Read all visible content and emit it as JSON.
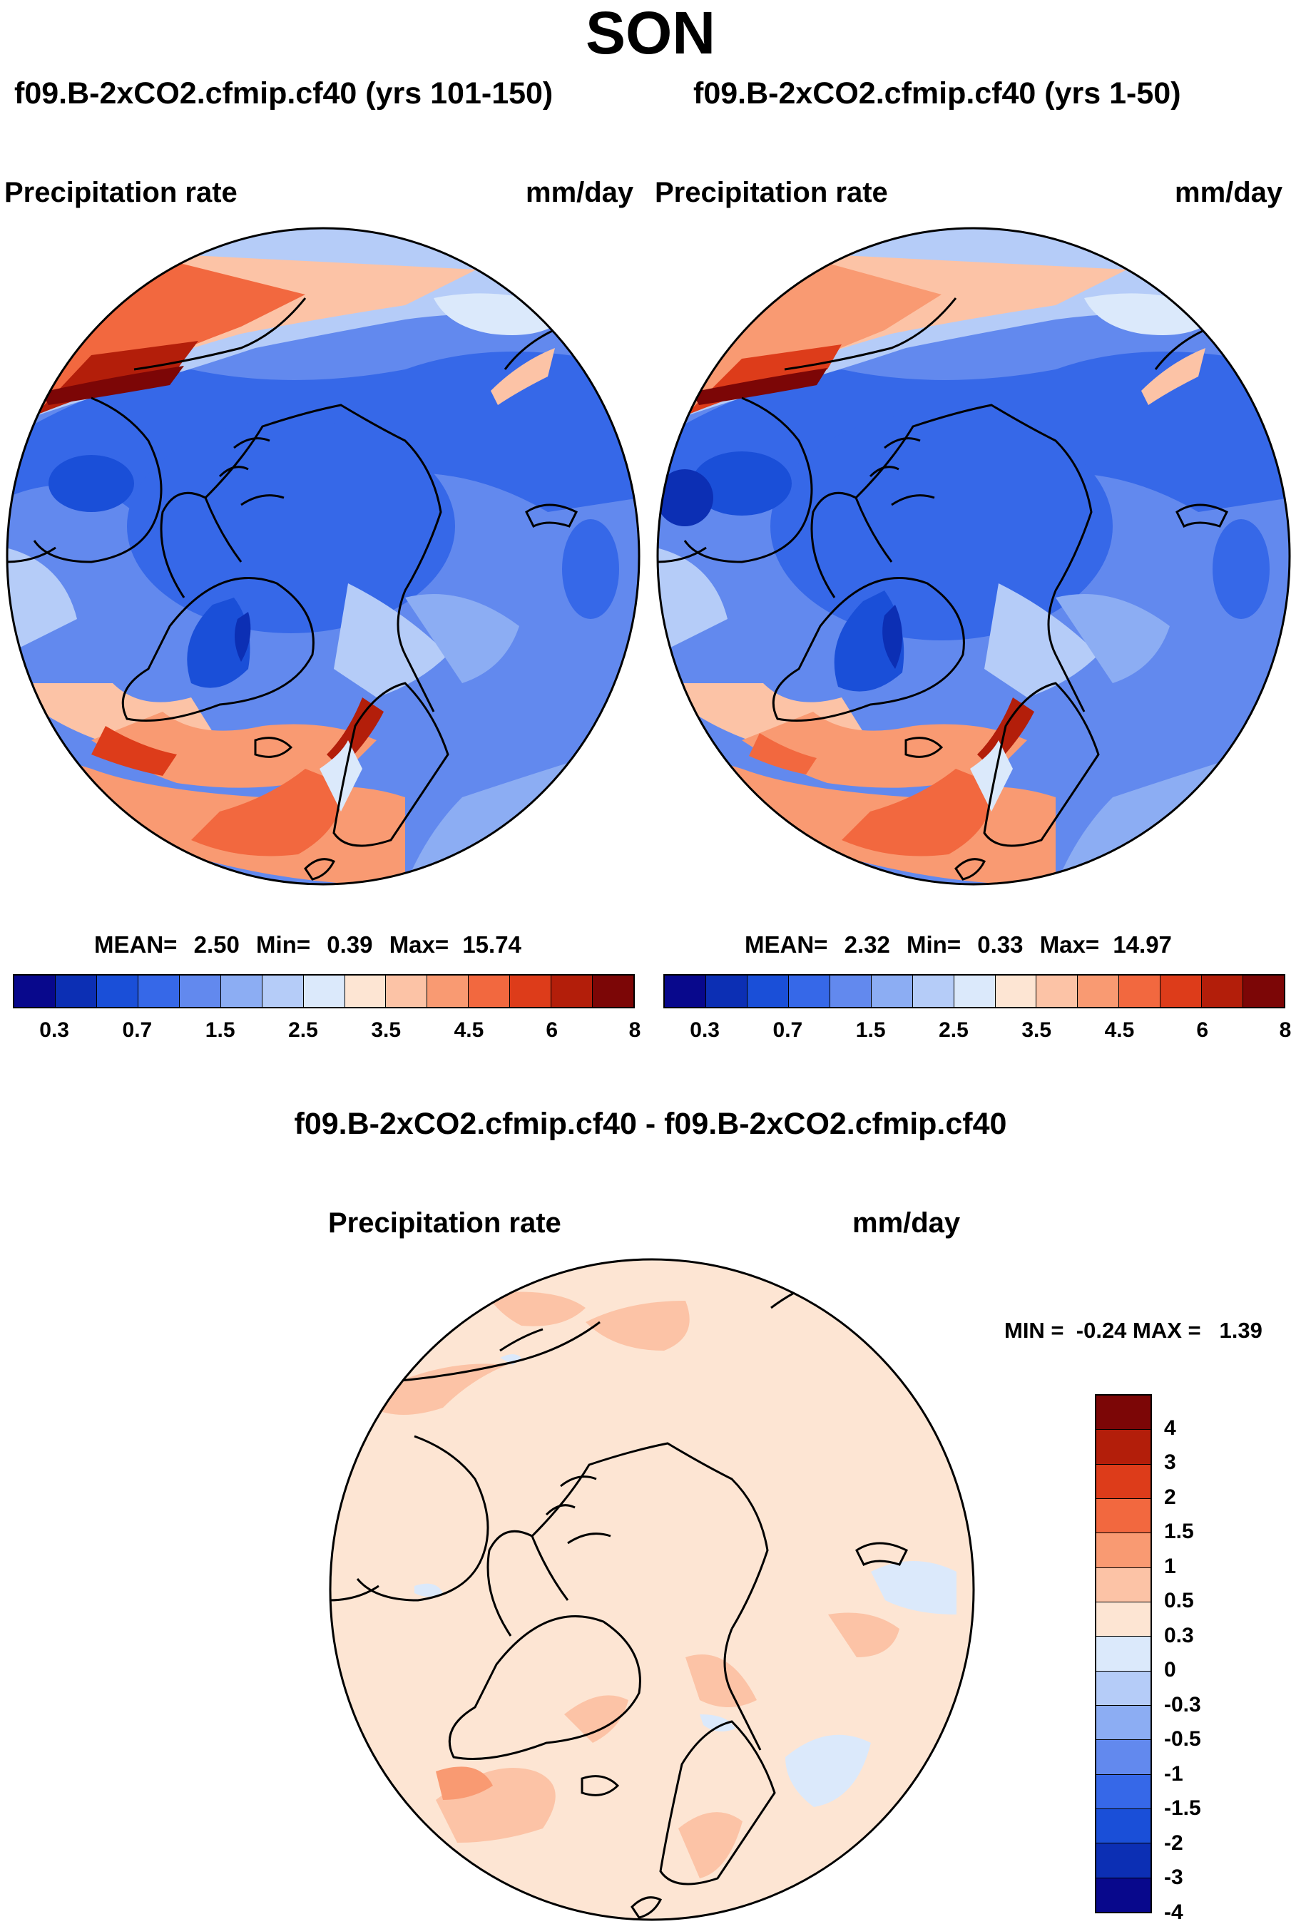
{
  "page": {
    "season_title": "SON"
  },
  "panels": {
    "left": {
      "case_title": "f09.B-2xCO2.cfmip.cf40 (yrs 101-150)",
      "variable": "Precipitation rate",
      "units": "mm/day",
      "stats": {
        "mean_label": "MEAN=",
        "mean": "2.50",
        "min_label": "Min=",
        "min": "0.39",
        "max_label": "Max=",
        "max": "15.74"
      }
    },
    "right": {
      "case_title": "f09.B-2xCO2.cfmip.cf40 (yrs 1-50)",
      "variable": "Precipitation rate",
      "units": "mm/day",
      "stats": {
        "mean_label": "MEAN=",
        "mean": "2.32",
        "min_label": "Min=",
        "min": "0.33",
        "max_label": "Max=",
        "max": "14.97"
      }
    },
    "diff": {
      "case_title": "f09.B-2xCO2.cfmip.cf40 - f09.B-2xCO2.cfmip.cf40",
      "variable": "Precipitation rate",
      "units": "mm/day",
      "minmax_text": "MIN =  -0.24 MAX =   1.39"
    }
  },
  "colorbar_abs": {
    "colors": [
      "#08088c",
      "#0c2fb4",
      "#1a4fd8",
      "#3668e8",
      "#6289ee",
      "#8cadf3",
      "#b5ccf8",
      "#dbe9fb",
      "#fde5d3",
      "#fcc3a6",
      "#f99a72",
      "#f2683f",
      "#dd3c1a",
      "#b31e0a",
      "#7c0606"
    ],
    "tick_labels": [
      "0.3",
      "0.7",
      "1.5",
      "2.5",
      "3.5",
      "4.5",
      "6",
      "8"
    ]
  },
  "colorbar_diff": {
    "colors_top_to_bottom": [
      "#7c0606",
      "#b31e0a",
      "#dd3c1a",
      "#f2683f",
      "#f99a72",
      "#fcc3a6",
      "#fde5d3",
      "#dbe9fb",
      "#b5ccf8",
      "#8cadf3",
      "#6289ee",
      "#3668e8",
      "#1a4fd8",
      "#0c2fb4",
      "#08088c"
    ],
    "tick_labels": [
      "4",
      "3",
      "2",
      "1.5",
      "1",
      "0.5",
      "0.3",
      "0",
      "-0.3",
      "-0.5",
      "-1",
      "-1.5",
      "-2",
      "-3",
      "-4"
    ]
  }
}
